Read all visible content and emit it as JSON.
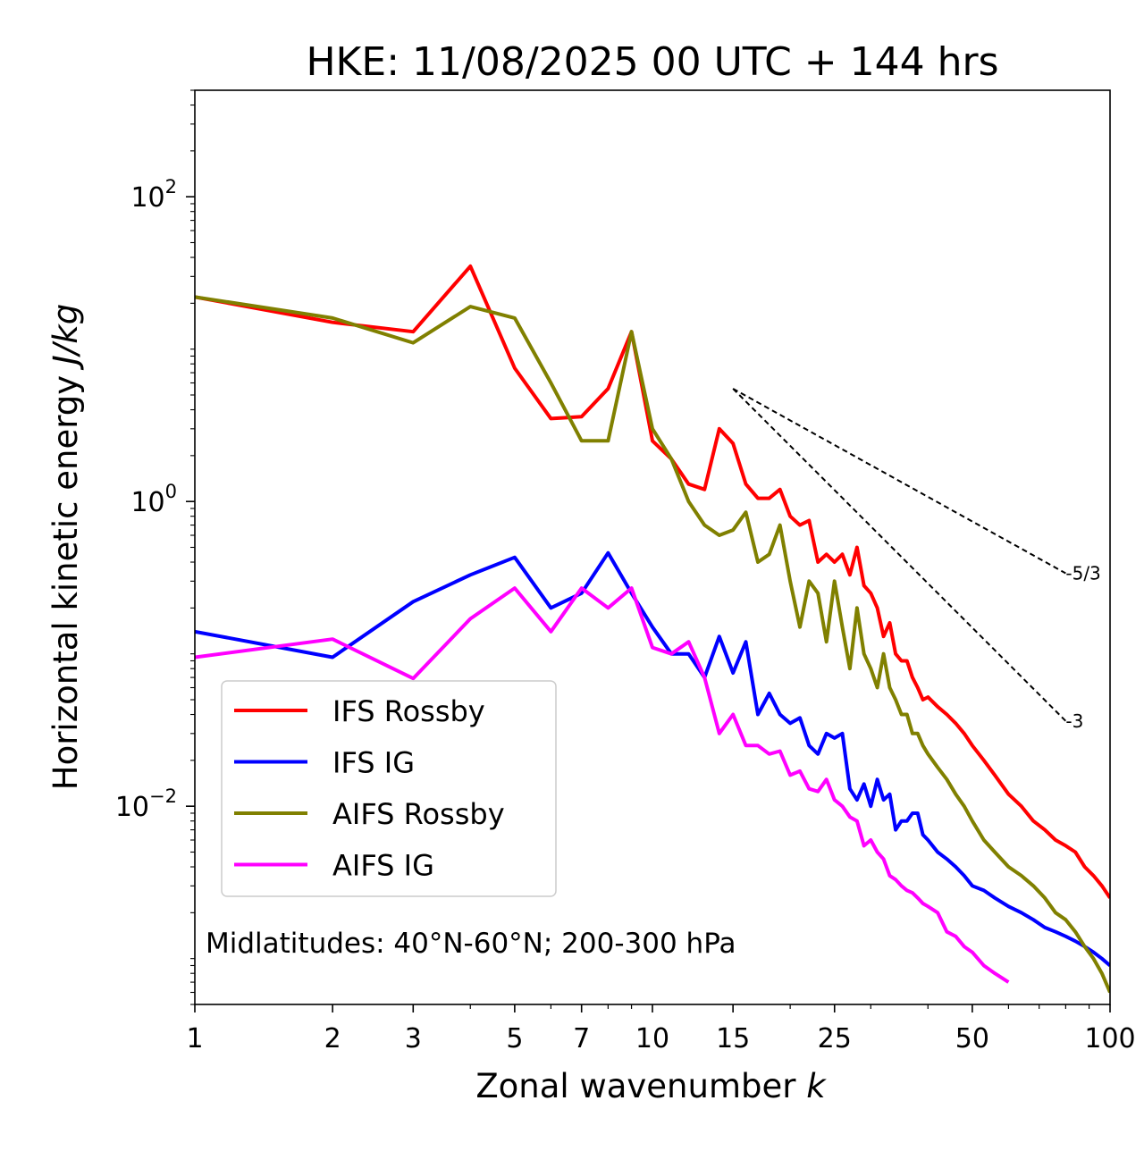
{
  "chart_data": {
    "type": "line",
    "title": "HKE: 11/08/2025 00 UTC + 144 hrs",
    "xlabel": "Zonal wavenumber",
    "xlabel_var": "k",
    "ylabel": "Horizontal kinetic energy",
    "ylabel_unit": "J/kg",
    "xscale": "log",
    "yscale": "log",
    "xlim": [
      1,
      100
    ],
    "ylim": [
      0.0005,
      500
    ],
    "x_ticks": [
      1,
      2,
      3,
      5,
      7,
      10,
      15,
      25,
      50,
      100
    ],
    "x_tick_labels": [
      "1",
      "2",
      "3",
      "5",
      "7",
      "10",
      "15",
      "25",
      "50",
      "100"
    ],
    "y_ticks": [
      {
        "value": 100,
        "base": "10",
        "exp": "2"
      },
      {
        "value": 1,
        "base": "10",
        "exp": "0"
      },
      {
        "value": 0.01,
        "base": "10",
        "exp": "−2"
      }
    ],
    "annotation": "Midlatitudes: 40°N-60°N; 200-300 hPa",
    "legend_location": "lower-left",
    "series": [
      {
        "name": "IFS Rossby",
        "color": "#ff0000",
        "x": [
          1,
          2,
          3,
          4,
          5,
          6,
          7,
          8,
          9,
          10,
          11,
          12,
          13,
          14,
          15,
          16,
          17,
          18,
          19,
          20,
          21,
          22,
          23,
          24,
          25,
          26,
          27,
          28,
          29,
          30,
          31,
          32,
          33,
          34,
          35,
          36,
          37,
          38,
          39,
          40,
          42,
          44,
          46,
          48,
          50,
          53,
          56,
          60,
          64,
          68,
          72,
          76,
          80,
          84,
          88,
          92,
          96,
          100
        ],
        "y": [
          22,
          15,
          13,
          35,
          7.5,
          3.5,
          3.6,
          5.5,
          13,
          2.5,
          1.9,
          1.3,
          1.2,
          3.0,
          2.4,
          1.3,
          1.05,
          1.05,
          1.2,
          0.8,
          0.7,
          0.75,
          0.4,
          0.45,
          0.4,
          0.45,
          0.33,
          0.5,
          0.28,
          0.25,
          0.2,
          0.13,
          0.16,
          0.1,
          0.09,
          0.09,
          0.07,
          0.06,
          0.05,
          0.052,
          0.045,
          0.04,
          0.035,
          0.03,
          0.025,
          0.02,
          0.016,
          0.012,
          0.01,
          0.008,
          0.007,
          0.006,
          0.0055,
          0.005,
          0.004,
          0.0035,
          0.003,
          0.0025
        ]
      },
      {
        "name": "IFS IG",
        "color": "#0000ff",
        "x": [
          1,
          2,
          3,
          4,
          5,
          6,
          7,
          8,
          9,
          10,
          11,
          12,
          13,
          14,
          15,
          16,
          17,
          18,
          19,
          20,
          21,
          22,
          23,
          24,
          25,
          26,
          27,
          28,
          29,
          30,
          31,
          32,
          33,
          34,
          35,
          36,
          37,
          38,
          39,
          40,
          42,
          44,
          46,
          48,
          50,
          53,
          56,
          60,
          64,
          68,
          72,
          76,
          80,
          84,
          88,
          92,
          96,
          100
        ],
        "y": [
          0.14,
          0.095,
          0.22,
          0.33,
          0.43,
          0.2,
          0.25,
          0.46,
          0.25,
          0.15,
          0.1,
          0.1,
          0.07,
          0.13,
          0.075,
          0.12,
          0.04,
          0.055,
          0.04,
          0.035,
          0.038,
          0.025,
          0.022,
          0.03,
          0.028,
          0.03,
          0.013,
          0.011,
          0.014,
          0.01,
          0.015,
          0.011,
          0.012,
          0.007,
          0.008,
          0.008,
          0.009,
          0.009,
          0.0065,
          0.006,
          0.005,
          0.0045,
          0.004,
          0.0035,
          0.003,
          0.0028,
          0.0025,
          0.0022,
          0.002,
          0.0018,
          0.0016,
          0.0015,
          0.0014,
          0.0013,
          0.0012,
          0.0011,
          0.001,
          0.0009
        ]
      },
      {
        "name": "AIFS Rossby",
        "color": "#808000",
        "x": [
          1,
          2,
          3,
          4,
          5,
          6,
          7,
          8,
          9,
          10,
          11,
          12,
          13,
          14,
          15,
          16,
          17,
          18,
          19,
          20,
          21,
          22,
          23,
          24,
          25,
          26,
          27,
          28,
          29,
          30,
          31,
          32,
          33,
          34,
          35,
          36,
          37,
          38,
          39,
          40,
          42,
          44,
          46,
          48,
          50,
          53,
          56,
          60,
          64,
          68,
          72,
          76,
          80,
          84,
          88,
          92,
          96,
          100
        ],
        "y": [
          22,
          16,
          11,
          19,
          16,
          6.0,
          2.5,
          2.5,
          13,
          3.0,
          1.9,
          1.0,
          0.7,
          0.6,
          0.65,
          0.85,
          0.4,
          0.45,
          0.7,
          0.3,
          0.15,
          0.3,
          0.25,
          0.12,
          0.3,
          0.15,
          0.08,
          0.2,
          0.1,
          0.08,
          0.06,
          0.1,
          0.06,
          0.05,
          0.04,
          0.04,
          0.03,
          0.03,
          0.025,
          0.022,
          0.018,
          0.015,
          0.012,
          0.01,
          0.008,
          0.006,
          0.005,
          0.004,
          0.0035,
          0.003,
          0.0025,
          0.002,
          0.0018,
          0.0015,
          0.0012,
          0.001,
          0.0008,
          0.0006
        ]
      },
      {
        "name": "AIFS IG",
        "color": "#ff00ff",
        "x": [
          1,
          2,
          3,
          4,
          5,
          6,
          7,
          8,
          9,
          10,
          11,
          12,
          13,
          14,
          15,
          16,
          17,
          18,
          19,
          20,
          21,
          22,
          23,
          24,
          25,
          26,
          27,
          28,
          29,
          30,
          31,
          32,
          33,
          34,
          35,
          36,
          37,
          38,
          39,
          40,
          42,
          44,
          46,
          48,
          50,
          53,
          56,
          60
        ],
        "y": [
          0.095,
          0.125,
          0.069,
          0.17,
          0.27,
          0.14,
          0.27,
          0.2,
          0.27,
          0.11,
          0.1,
          0.12,
          0.07,
          0.03,
          0.04,
          0.025,
          0.025,
          0.022,
          0.023,
          0.016,
          0.017,
          0.013,
          0.0125,
          0.015,
          0.011,
          0.01,
          0.0085,
          0.008,
          0.0055,
          0.006,
          0.005,
          0.0045,
          0.0035,
          0.0033,
          0.003,
          0.0028,
          0.0027,
          0.0025,
          0.0023,
          0.0022,
          0.002,
          0.0015,
          0.0014,
          0.0012,
          0.0011,
          0.0009,
          0.0008,
          0.0007
        ]
      }
    ],
    "reference_lines": [
      {
        "label": "-5/3",
        "k0": 15,
        "k1": 80,
        "e0": 5.5
      },
      {
        "label": "-3",
        "k0": 15,
        "k1": 80,
        "e0": 5.5
      }
    ]
  }
}
